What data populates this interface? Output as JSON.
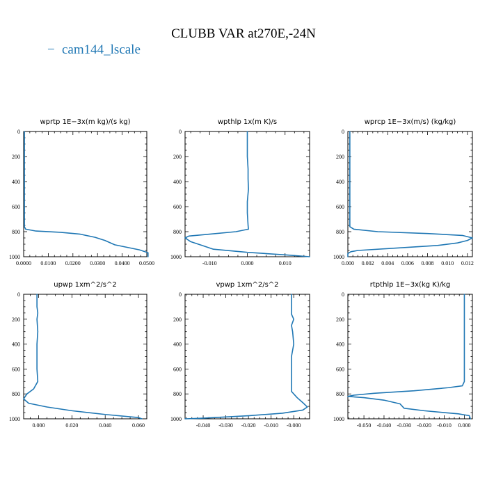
{
  "title": "CLUBB VAR at270E,-24N",
  "legend": {
    "marker": "−",
    "label": "cam144_lscale",
    "color": "#1f77b4"
  },
  "chart_data": [
    {
      "type": "line",
      "title": "wprtp   1E−3x(m kg)/(s kg)",
      "xlim": [
        0.0,
        0.05
      ],
      "ylim": [
        1000,
        0
      ],
      "xticks": [
        "0.0000",
        "0.0100",
        "0.0200",
        "0.0300",
        "0.0400",
        "0.0500"
      ],
      "xtick_values": [
        0.0,
        0.01,
        0.02,
        0.03,
        0.04,
        0.05
      ],
      "yticks": [
        0,
        200,
        400,
        600,
        800,
        1000
      ],
      "series": [
        {
          "color": "#1f77b4",
          "points": [
            [
              0.0003,
              0
            ],
            [
              0.0003,
              200
            ],
            [
              0.0003,
              400
            ],
            [
              0.0003,
              600
            ],
            [
              0.0003,
              760
            ],
            [
              0.0008,
              780
            ],
            [
              0.005,
              795
            ],
            [
              0.015,
              805
            ],
            [
              0.023,
              820
            ],
            [
              0.029,
              845
            ],
            [
              0.033,
              870
            ],
            [
              0.037,
              905
            ],
            [
              0.042,
              925
            ],
            [
              0.047,
              945
            ],
            [
              0.0505,
              968
            ],
            [
              0.0505,
              1000
            ]
          ]
        }
      ]
    },
    {
      "type": "line",
      "title": "wpthlp   1x(m K)/s",
      "xlim": [
        -0.0165,
        0.0165
      ],
      "ylim": [
        1000,
        0
      ],
      "xticks": [
        "-0.010",
        "0.000",
        "0.010"
      ],
      "xtick_values": [
        -0.01,
        0.0,
        0.01
      ],
      "yticks": [
        0,
        200,
        400,
        600,
        800,
        1000
      ],
      "series": [
        {
          "color": "#1f77b4",
          "points": [
            [
              0.0,
              0
            ],
            [
              0.0,
              200
            ],
            [
              0.0002,
              300
            ],
            [
              0.0002,
              380
            ],
            [
              0.0003,
              460
            ],
            [
              0.0,
              560
            ],
            [
              0.0,
              650
            ],
            [
              0.0002,
              750
            ],
            [
              0.0003,
              780
            ],
            [
              -0.003,
              800
            ],
            [
              -0.01,
              820
            ],
            [
              -0.0155,
              835
            ],
            [
              -0.0165,
              850
            ],
            [
              -0.015,
              880
            ],
            [
              -0.012,
              910
            ],
            [
              -0.009,
              940
            ],
            [
              0.0,
              965
            ],
            [
              0.01,
              985
            ],
            [
              0.0165,
              1000
            ]
          ]
        }
      ]
    },
    {
      "type": "line",
      "title": "wprcp   1E−3x(m/s) (kg/kg)",
      "xlim": [
        0.0,
        0.0125
      ],
      "ylim": [
        1000,
        0
      ],
      "xticks": [
        "0.000",
        "0.002",
        "0.004",
        "0.006",
        "0.008",
        "0.010",
        "0.012"
      ],
      "xtick_values": [
        0.0,
        0.002,
        0.004,
        0.006,
        0.008,
        0.01,
        0.012
      ],
      "yticks": [
        0,
        200,
        400,
        600,
        800,
        1000
      ],
      "series": [
        {
          "color": "#1f77b4",
          "points": [
            [
              0.0002,
              0
            ],
            [
              0.0002,
              200
            ],
            [
              0.0002,
              400
            ],
            [
              0.0002,
              600
            ],
            [
              0.0002,
              760
            ],
            [
              0.0006,
              780
            ],
            [
              0.003,
              800
            ],
            [
              0.008,
              815
            ],
            [
              0.0115,
              830
            ],
            [
              0.0125,
              850
            ],
            [
              0.012,
              870
            ],
            [
              0.011,
              890
            ],
            [
              0.009,
              910
            ],
            [
              0.005,
              930
            ],
            [
              0.001,
              950
            ],
            [
              0.0003,
              960
            ],
            [
              0.0,
              975
            ],
            [
              0.0,
              1000
            ]
          ]
        }
      ]
    },
    {
      "type": "line",
      "title": "upwp   1xm^2/s^2",
      "xlim": [
        -0.009,
        0.065
      ],
      "ylim": [
        1000,
        0
      ],
      "xticks": [
        "0.000",
        "0.020",
        "0.040",
        "0.060"
      ],
      "xtick_values": [
        0.0,
        0.02,
        0.04,
        0.06
      ],
      "yticks": [
        0,
        200,
        400,
        600,
        800,
        1000
      ],
      "series": [
        {
          "color": "#1f77b4",
          "points": [
            [
              -0.001,
              0
            ],
            [
              -0.001,
              100
            ],
            [
              -0.0005,
              150
            ],
            [
              -0.001,
              200
            ],
            [
              -0.0005,
              300
            ],
            [
              -0.001,
              400
            ],
            [
              -0.001,
              500
            ],
            [
              -0.001,
              600
            ],
            [
              -0.0005,
              700
            ],
            [
              -0.003,
              760
            ],
            [
              -0.007,
              800
            ],
            [
              -0.009,
              840
            ],
            [
              -0.006,
              875
            ],
            [
              0.005,
              905
            ],
            [
              0.02,
              935
            ],
            [
              0.04,
              965
            ],
            [
              0.06,
              990
            ],
            [
              0.062,
              1000
            ]
          ]
        }
      ]
    },
    {
      "type": "line",
      "title": "vpwp   1xm^2/s^2",
      "xlim": [
        -0.048,
        0.007
      ],
      "ylim": [
        1000,
        0
      ],
      "xticks": [
        "-0.040",
        "-0.030",
        "-0.020",
        "-0.010",
        "-0.000"
      ],
      "xtick_values": [
        -0.04,
        -0.03,
        -0.02,
        -0.01,
        0.0
      ],
      "yticks": [
        0,
        200,
        400,
        600,
        800,
        1000
      ],
      "series": [
        {
          "color": "#1f77b4",
          "points": [
            [
              -0.001,
              0
            ],
            [
              -0.001,
              100
            ],
            [
              -0.001,
              160
            ],
            [
              0.0,
              200
            ],
            [
              -0.001,
              250
            ],
            [
              -0.0005,
              300
            ],
            [
              0.0,
              400
            ],
            [
              -0.001,
              500
            ],
            [
              -0.001,
              600
            ],
            [
              -0.001,
              700
            ],
            [
              -0.001,
              780
            ],
            [
              0.0015,
              830
            ],
            [
              0.004,
              870
            ],
            [
              0.006,
              905
            ],
            [
              0.004,
              930
            ],
            [
              -0.005,
              955
            ],
            [
              -0.02,
              975
            ],
            [
              -0.04,
              995
            ],
            [
              -0.048,
              1000
            ]
          ]
        }
      ]
    },
    {
      "type": "line",
      "title": "rtpthlp   1E−3x(kg K)/kg",
      "xlim": [
        -0.058,
        0.004
      ],
      "ylim": [
        1000,
        0
      ],
      "xticks": [
        "-0.050",
        "-0.040",
        "-0.030",
        "-0.020",
        "-0.010",
        "0.000"
      ],
      "xtick_values": [
        -0.05,
        -0.04,
        -0.03,
        -0.02,
        -0.01,
        0.0
      ],
      "yticks": [
        0,
        200,
        400,
        600,
        800,
        1000
      ],
      "series": [
        {
          "color": "#1f77b4",
          "points": [
            [
              0.0,
              0
            ],
            [
              0.0,
              200
            ],
            [
              0.0,
              400
            ],
            [
              0.0,
              600
            ],
            [
              0.0,
              700
            ],
            [
              -0.001,
              735
            ],
            [
              -0.008,
              750
            ],
            [
              -0.025,
              775
            ],
            [
              -0.045,
              795
            ],
            [
              -0.055,
              810
            ],
            [
              -0.058,
              820
            ],
            [
              -0.05,
              830
            ],
            [
              -0.04,
              850
            ],
            [
              -0.032,
              880
            ],
            [
              -0.03,
              915
            ],
            [
              -0.02,
              935
            ],
            [
              -0.01,
              950
            ],
            [
              -0.003,
              960
            ],
            [
              0.0025,
              975
            ],
            [
              0.003,
              1000
            ]
          ]
        }
      ]
    }
  ]
}
